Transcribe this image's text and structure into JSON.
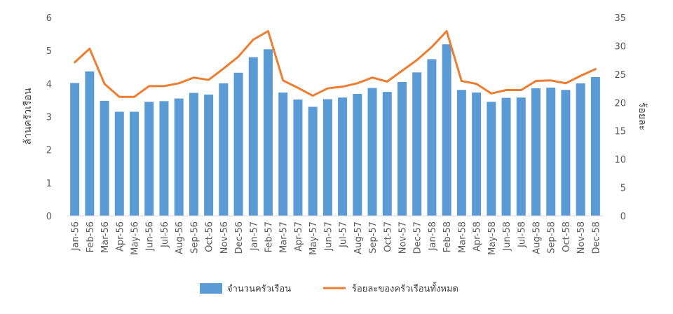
{
  "chart_data": {
    "type": "bar",
    "categories": [
      "Jan-56",
      "Feb-56",
      "Mar-56",
      "Apr-56",
      "May-56",
      "Jun-56",
      "Jul-56",
      "Aug-56",
      "Sep-56",
      "Oct-56",
      "Nov-56",
      "Dec-56",
      "Jan-57",
      "Feb-57",
      "Mar-57",
      "Apr-57",
      "May-57",
      "Jun-57",
      "Jul-57",
      "Aug-57",
      "Sep-57",
      "Oct-57",
      "Nov-57",
      "Dec-57",
      "Jan-58",
      "Feb-58",
      "Mar-58",
      "Apr-58",
      "May-58",
      "Jun-58",
      "Jul-58",
      "Aug-58",
      "Sep-58",
      "Oct-58",
      "Nov-58",
      "Dec-58"
    ],
    "series": [
      {
        "name": "จำนวนครัวเรือน",
        "type": "bar",
        "axis": "left",
        "color": "#5B9BD5",
        "values": [
          4.02,
          4.37,
          3.48,
          3.15,
          3.15,
          3.45,
          3.47,
          3.55,
          3.72,
          3.67,
          4.01,
          4.33,
          4.8,
          5.04,
          3.73,
          3.52,
          3.3,
          3.53,
          3.58,
          3.69,
          3.87,
          3.75,
          4.05,
          4.34,
          4.74,
          5.19,
          3.81,
          3.73,
          3.45,
          3.57,
          3.58,
          3.86,
          3.88,
          3.81,
          4.01,
          4.2
        ]
      },
      {
        "name": "ร้อยละของครัวเรือนทั้งหมด",
        "type": "line",
        "axis": "right",
        "color": "#ED7D31",
        "values": [
          27.1,
          29.5,
          23.3,
          21.0,
          21.0,
          22.9,
          22.9,
          23.4,
          24.4,
          24.0,
          26.0,
          28.1,
          31.1,
          32.6,
          23.9,
          22.6,
          21.2,
          22.5,
          22.8,
          23.4,
          24.4,
          23.7,
          25.6,
          27.5,
          29.8,
          32.6,
          23.8,
          23.3,
          21.6,
          22.2,
          22.2,
          23.8,
          23.9,
          23.4,
          24.7,
          25.9
        ]
      }
    ],
    "ylabel_left": "ล้านครัวเรือน",
    "ylabel_right": "ร้อยละ",
    "ylim_left": [
      0,
      6
    ],
    "ylim_right": [
      0,
      35
    ],
    "yticks_left": [
      "0",
      "1",
      "2",
      "3",
      "4",
      "5",
      "6"
    ],
    "yticks_right": [
      "0",
      "5",
      "10",
      "15",
      "20",
      "25",
      "30",
      "35"
    ],
    "grid": false,
    "legend_position": "bottom"
  }
}
